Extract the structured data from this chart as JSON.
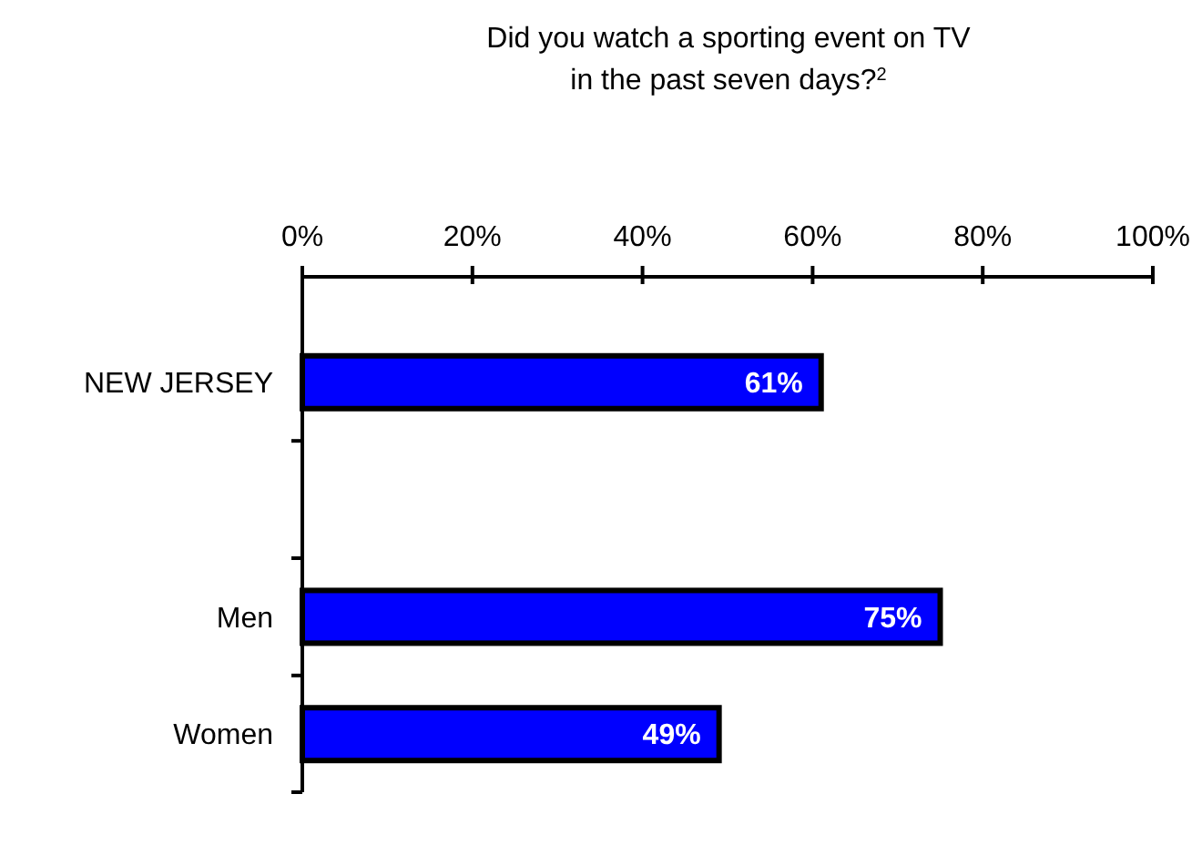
{
  "chart_data": {
    "type": "bar",
    "orientation": "horizontal",
    "title": "Did you watch a sporting event on TV\nin the past seven days?$^{2}$",
    "categories": [
      "NEW JERSEY",
      null,
      "Men",
      "Women"
    ],
    "values": [
      61,
      null,
      75,
      49
    ],
    "value_labels": [
      "61%",
      null,
      "75%",
      "49%"
    ],
    "color": "#0000ff",
    "xlim": [
      0,
      100
    ],
    "xticks": [
      {
        "value": 0,
        "label": "0%"
      },
      {
        "value": 20,
        "label": "20%"
      },
      {
        "value": 40,
        "label": "40%"
      },
      {
        "value": 60,
        "label": "60%"
      },
      {
        "value": 80,
        "label": "80%"
      },
      {
        "value": 100,
        "label": "100%"
      }
    ],
    "grid": false
  }
}
